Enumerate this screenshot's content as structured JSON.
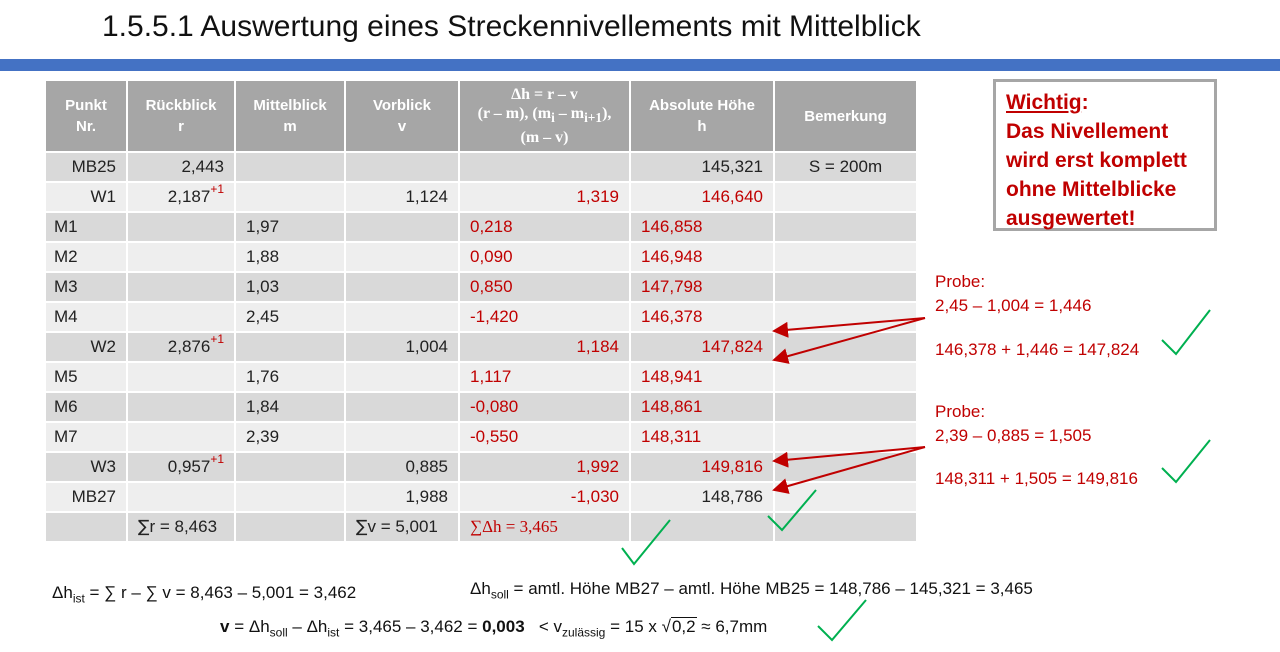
{
  "title": "1.5.5.1 Auswertung eines Streckennivellements mit Mittelblick",
  "colors": {
    "accent_bar": "#4472c4",
    "red": "#c00000",
    "green": "#00b050",
    "header_gray": "#a6a6a6"
  },
  "table": {
    "headers": {
      "punkt": [
        "Punkt",
        "Nr."
      ],
      "rueck": [
        "Rückblick",
        "r"
      ],
      "mittel": [
        "Mittelblick",
        "m"
      ],
      "vor": [
        "Vorblick",
        "v"
      ],
      "dh": [
        "Δh = r – v",
        "(r – m), (m",
        "i",
        " – m",
        "i+1",
        "),",
        "(m – v)"
      ],
      "abs": [
        "Absolute Höhe",
        "h"
      ],
      "bem": "Bemerkung"
    },
    "rows": [
      {
        "punkt": "MB25",
        "r": "2,443",
        "r_sup": "",
        "m": "",
        "v": "",
        "dh": "",
        "h": "145,321",
        "bem": "S = 200m"
      },
      {
        "punkt": "W1",
        "r": "2,187",
        "r_sup": "+1",
        "m": "",
        "v": "1,124",
        "dh": "1,319",
        "h": "146,640",
        "bem": ""
      },
      {
        "punkt": "M1",
        "r": "",
        "r_sup": "",
        "m": "1,97",
        "v": "",
        "dh": "0,218",
        "h": "146,858",
        "bem": ""
      },
      {
        "punkt": "M2",
        "r": "",
        "r_sup": "",
        "m": "1,88",
        "v": "",
        "dh": "0,090",
        "h": "146,948",
        "bem": ""
      },
      {
        "punkt": "M3",
        "r": "",
        "r_sup": "",
        "m": "1,03",
        "v": "",
        "dh": "0,850",
        "h": "147,798",
        "bem": ""
      },
      {
        "punkt": "M4",
        "r": "",
        "r_sup": "",
        "m": "2,45",
        "v": "",
        "dh": "-1,420",
        "h": "146,378",
        "bem": ""
      },
      {
        "punkt": "W2",
        "r": "2,876",
        "r_sup": "+1",
        "m": "",
        "v": "1,004",
        "dh": "1,184",
        "h": "147,824",
        "bem": ""
      },
      {
        "punkt": "M5",
        "r": "",
        "r_sup": "",
        "m": "1,76",
        "v": "",
        "dh": "1,117",
        "h": "148,941",
        "bem": ""
      },
      {
        "punkt": "M6",
        "r": "",
        "r_sup": "",
        "m": "1,84",
        "v": "",
        "dh": "-0,080",
        "h": "148,861",
        "bem": ""
      },
      {
        "punkt": "M7",
        "r": "",
        "r_sup": "",
        "m": "2,39",
        "v": "",
        "dh": "-0,550",
        "h": "148,311",
        "bem": ""
      },
      {
        "punkt": "W3",
        "r": "0,957",
        "r_sup": "+1",
        "m": "",
        "v": "0,885",
        "dh": "1,992",
        "h": "149,816",
        "bem": ""
      },
      {
        "punkt": "MB27",
        "r": "",
        "r_sup": "",
        "m": "",
        "v": "1,988",
        "dh": "-1,030",
        "h": "148,786",
        "bem": ""
      }
    ],
    "sum_row": {
      "r_sym": "∑",
      "r": "r = 8,463",
      "v_sym": "∑",
      "v": "v = 5,001",
      "dh": "∑Δh = 3,465"
    }
  },
  "note": {
    "head": "Wichtig",
    "colon": ":",
    "lines": [
      "Das Nivellement",
      "wird erst komplett",
      "ohne Mittelblicke",
      "ausgewertet!"
    ]
  },
  "probe1": {
    "label": "Probe:",
    "line1": "2,45 – 1,004 = 1,446",
    "line2": "146,378 + 1,446 = 147,824"
  },
  "probe2": {
    "label": "Probe:",
    "line1": "2,39 – 0,885 = 1,505",
    "line2": "148,311 + 1,505 = 149,816"
  },
  "bottom": {
    "dh_ist": {
      "prefix": "Δh",
      "sub": "ist",
      "rest": " = ∑ r – ∑ v = 8,463 – 5,001 = 3,462"
    },
    "dh_soll": {
      "prefix": "Δh",
      "sub": "soll",
      "rest": " = amtl. Höhe MB27 –  amtl. Höhe MB25 = 148,786 –  145,321 = 3,465"
    },
    "v_line": {
      "v": "v",
      "eq": " = Δh",
      "sub1": "soll",
      "mid": " – Δh",
      "sub2": "ist",
      "calc": " = 3,465 – 3,462 = ",
      "result": "0,003",
      "lt": "   < v",
      "sub3": "zulässig",
      "formula": " = 15 x ",
      "sqrt_sym": "√",
      "sqrt_val": "0,2",
      "approx": " ≈ 6,7mm"
    }
  }
}
